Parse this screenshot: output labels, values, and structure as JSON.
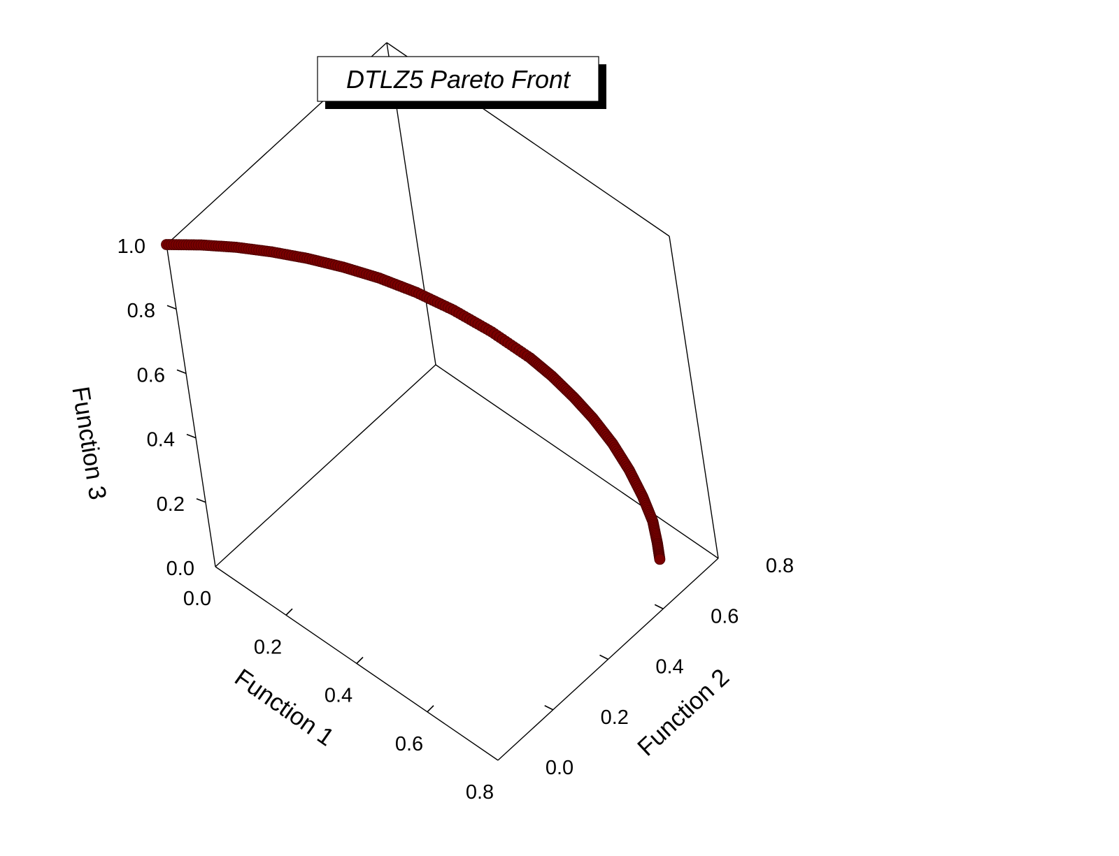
{
  "chart_data": {
    "type": "scatter",
    "subtype": "3d-scatter",
    "title": "DTLZ5 Pareto Front",
    "xlabel": "Function 1",
    "ylabel": "Function 2",
    "zlabel": "Function 3",
    "xlim": [
      0,
      0.8
    ],
    "ylim": [
      0,
      0.8
    ],
    "zlim": [
      0,
      1.0
    ],
    "x_ticks": [
      "0.0",
      "0.2",
      "0.4",
      "0.6",
      "0.8"
    ],
    "y_ticks": [
      "0.0",
      "0.2",
      "0.4",
      "0.6",
      "0.8"
    ],
    "z_ticks": [
      "0.0",
      "0.2",
      "0.4",
      "0.6",
      "0.8",
      "1.0"
    ],
    "marker_color": "#7a0000",
    "series": [
      {
        "points": [
          [
            0.0,
            0.0,
            1.0
          ],
          [
            0.055,
            0.055,
            0.997
          ],
          [
            0.11,
            0.11,
            0.988
          ],
          [
            0.165,
            0.165,
            0.972
          ],
          [
            0.22,
            0.22,
            0.95
          ],
          [
            0.275,
            0.275,
            0.921
          ],
          [
            0.33,
            0.33,
            0.885
          ],
          [
            0.385,
            0.385,
            0.839
          ],
          [
            0.44,
            0.44,
            0.782
          ],
          [
            0.495,
            0.495,
            0.713
          ],
          [
            0.55,
            0.55,
            0.63
          ],
          [
            0.58,
            0.58,
            0.573
          ],
          [
            0.61,
            0.61,
            0.505
          ],
          [
            0.635,
            0.635,
            0.44
          ],
          [
            0.66,
            0.66,
            0.361
          ],
          [
            0.68,
            0.68,
            0.278
          ],
          [
            0.695,
            0.695,
            0.195
          ],
          [
            0.705,
            0.705,
            0.118
          ],
          [
            0.707,
            0.707,
            0.05
          ],
          [
            0.707,
            0.707,
            0.0
          ]
        ]
      }
    ]
  }
}
